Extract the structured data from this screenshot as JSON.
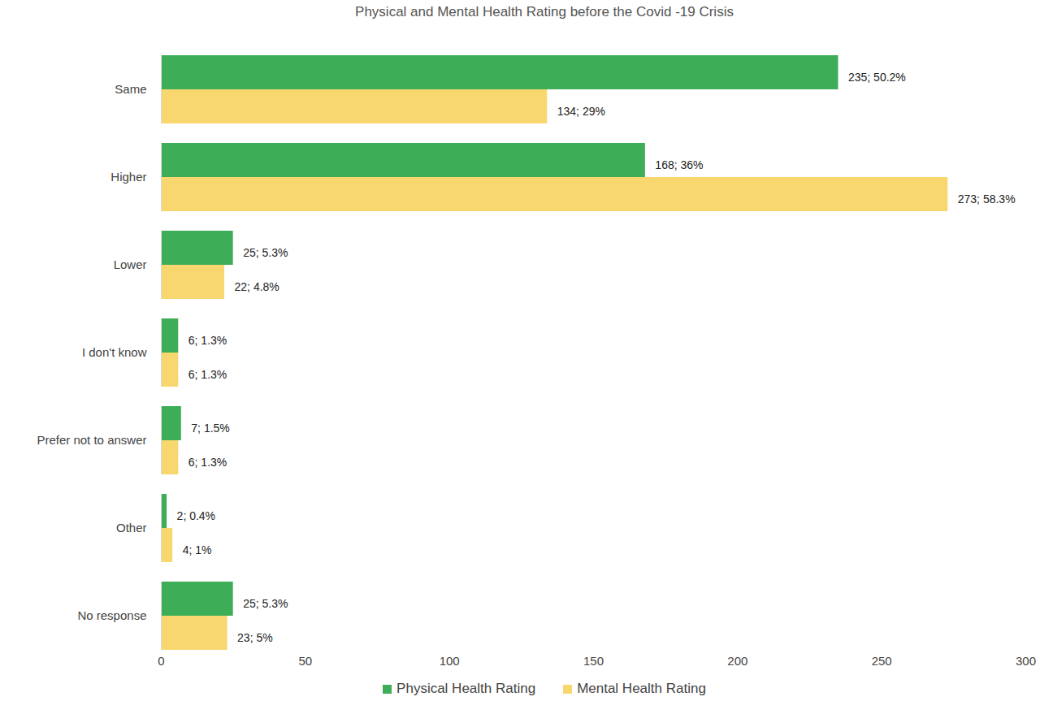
{
  "chart_data": {
    "type": "bar",
    "orientation": "horizontal",
    "title": "Physical and Mental Health Rating before the Covid -19 Crisis",
    "categories": [
      "Same",
      "Higher",
      "Lower",
      "I don't know",
      "Prefer not to answer",
      "Other",
      "No response"
    ],
    "series": [
      {
        "name": "Physical Health Rating",
        "color": "#3dae57",
        "values": [
          235,
          168,
          25,
          6,
          7,
          2,
          25
        ],
        "value_labels": [
          "235; 50.2%",
          "168; 36%",
          "25; 5.3%",
          "6; 1.3%",
          "7; 1.5%",
          "2; 0.4%",
          "25; 5.3%"
        ]
      },
      {
        "name": "Mental Health Rating",
        "color": "#f7d76e",
        "values": [
          134,
          273,
          22,
          6,
          6,
          4,
          23
        ],
        "value_labels": [
          "134; 29%",
          "273; 58.3%",
          "22; 4.8%",
          "6; 1.3%",
          "6; 1.3%",
          "4; 1%",
          "23; 5%"
        ]
      }
    ],
    "xlim": [
      0,
      300
    ],
    "xticks": [
      0,
      50,
      100,
      150,
      200,
      250,
      300
    ],
    "grid": false,
    "data_labels": true,
    "legend": "bottom"
  }
}
